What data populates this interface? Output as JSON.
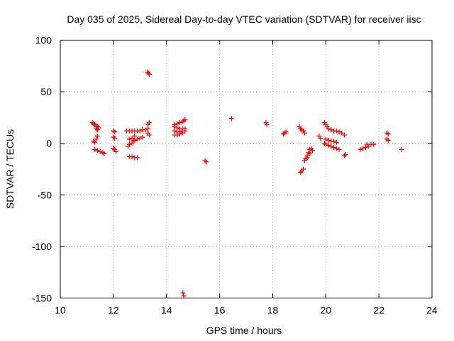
{
  "chart_data": {
    "type": "scatter",
    "title": "Day 035 of 2025, Sidereal Day-to-day VTEC variation (SDTVAR) for receiver iisc",
    "xlabel": "GPS time / hours",
    "ylabel": "SDTVAR / TECUs",
    "xlim": [
      10,
      24
    ],
    "ylim": [
      -150,
      100
    ],
    "xticks": [
      "10",
      "12",
      "14",
      "16",
      "18",
      "20",
      "22",
      "24"
    ],
    "yticks": [
      "100",
      "50",
      "0",
      "-50",
      "-100",
      "-150"
    ],
    "grid": true,
    "marker": "plus",
    "series": [
      {
        "name": "SDTVAR",
        "color": "#ff0000",
        "points": [
          [
            11.2,
            20
          ],
          [
            11.25,
            19
          ],
          [
            11.3,
            18
          ],
          [
            11.35,
            17
          ],
          [
            11.4,
            16
          ],
          [
            11.45,
            15
          ],
          [
            11.4,
            13
          ],
          [
            11.35,
            14
          ],
          [
            11.25,
            2
          ],
          [
            11.3,
            1
          ],
          [
            11.35,
            4
          ],
          [
            11.4,
            7
          ],
          [
            11.3,
            -6
          ],
          [
            11.4,
            -7
          ],
          [
            11.5,
            -8
          ],
          [
            11.6,
            -9
          ],
          [
            11.65,
            -10
          ],
          [
            12.0,
            12
          ],
          [
            12.05,
            11
          ],
          [
            12.0,
            6
          ],
          [
            12.05,
            5
          ],
          [
            12.0,
            -5
          ],
          [
            12.05,
            -6
          ],
          [
            12.1,
            -8
          ],
          [
            12.5,
            12
          ],
          [
            12.6,
            12
          ],
          [
            12.7,
            12
          ],
          [
            12.8,
            12
          ],
          [
            12.9,
            12
          ],
          [
            13.0,
            12
          ],
          [
            13.1,
            13
          ],
          [
            13.2,
            13
          ],
          [
            13.3,
            14
          ],
          [
            12.55,
            -3
          ],
          [
            12.6,
            -1
          ],
          [
            12.7,
            0
          ],
          [
            12.75,
            2
          ],
          [
            12.8,
            3
          ],
          [
            12.9,
            4
          ],
          [
            13.0,
            5
          ],
          [
            13.1,
            6
          ],
          [
            12.6,
            -13
          ],
          [
            12.7,
            -13
          ],
          [
            12.8,
            -14
          ],
          [
            12.9,
            -14
          ],
          [
            12.6,
            4
          ],
          [
            12.7,
            5
          ],
          [
            12.8,
            7
          ],
          [
            13.3,
            18
          ],
          [
            13.35,
            20
          ],
          [
            13.3,
            10
          ],
          [
            13.35,
            8
          ],
          [
            13.28,
            69
          ],
          [
            13.32,
            68
          ],
          [
            13.36,
            67
          ],
          [
            14.3,
            18
          ],
          [
            14.4,
            19
          ],
          [
            14.5,
            20
          ],
          [
            14.6,
            21
          ],
          [
            14.65,
            22
          ],
          [
            14.7,
            23
          ],
          [
            14.3,
            16
          ],
          [
            14.4,
            15
          ],
          [
            14.5,
            14
          ],
          [
            14.6,
            14
          ],
          [
            14.7,
            14
          ],
          [
            14.3,
            12
          ],
          [
            14.4,
            11
          ],
          [
            14.5,
            11
          ],
          [
            14.6,
            12
          ],
          [
            14.7,
            12
          ],
          [
            14.3,
            8
          ],
          [
            14.4,
            8
          ],
          [
            14.5,
            9
          ],
          [
            14.6,
            10
          ],
          [
            14.62,
            -145
          ],
          [
            14.65,
            -148
          ],
          [
            15.45,
            -17
          ],
          [
            15.5,
            -18
          ],
          [
            16.45,
            24
          ],
          [
            17.75,
            20
          ],
          [
            17.78,
            18
          ],
          [
            18.4,
            9
          ],
          [
            18.45,
            10
          ],
          [
            18.5,
            11
          ],
          [
            19.0,
            16
          ],
          [
            19.05,
            14
          ],
          [
            19.1,
            13
          ],
          [
            19.15,
            12
          ],
          [
            19.2,
            10
          ],
          [
            19.05,
            -28
          ],
          [
            19.1,
            -27
          ],
          [
            19.15,
            -25
          ],
          [
            19.2,
            -17
          ],
          [
            19.25,
            -15
          ],
          [
            19.3,
            -12
          ],
          [
            19.35,
            -9
          ],
          [
            19.4,
            -6
          ],
          [
            19.45,
            -5
          ],
          [
            19.3,
            -14
          ],
          [
            19.4,
            -10
          ],
          [
            19.5,
            -7
          ],
          [
            19.75,
            7
          ],
          [
            19.8,
            5
          ],
          [
            19.95,
            20
          ],
          [
            20.0,
            18
          ],
          [
            20.05,
            16
          ],
          [
            20.1,
            14
          ],
          [
            20.2,
            13
          ],
          [
            20.3,
            12
          ],
          [
            20.4,
            12
          ],
          [
            20.5,
            11
          ],
          [
            20.6,
            10
          ],
          [
            20.7,
            8
          ],
          [
            19.95,
            0
          ],
          [
            20.0,
            -1
          ],
          [
            20.1,
            -2
          ],
          [
            20.2,
            -3
          ],
          [
            20.3,
            -4
          ],
          [
            20.4,
            -5
          ],
          [
            20.5,
            -6
          ],
          [
            20.0,
            4
          ],
          [
            20.1,
            3
          ],
          [
            20.2,
            2
          ],
          [
            20.3,
            2
          ],
          [
            20.4,
            1
          ],
          [
            20.7,
            -12
          ],
          [
            20.75,
            -11
          ],
          [
            21.3,
            -6
          ],
          [
            21.4,
            -5
          ],
          [
            21.5,
            -4
          ],
          [
            21.6,
            -3
          ],
          [
            21.55,
            -1
          ],
          [
            21.7,
            -1
          ],
          [
            21.8,
            -1
          ],
          [
            22.3,
            10
          ],
          [
            22.35,
            9
          ],
          [
            22.3,
            4
          ],
          [
            22.35,
            3
          ],
          [
            22.85,
            -6
          ]
        ]
      }
    ]
  }
}
